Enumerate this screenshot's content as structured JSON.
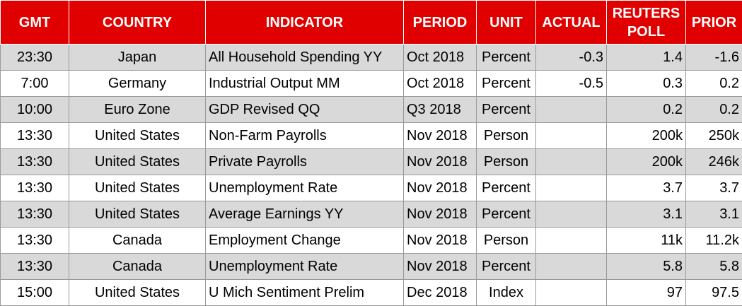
{
  "table": {
    "header": [
      "GMT",
      "COUNTRY",
      "INDICATOR",
      "PERIOD",
      "UNIT",
      "ACTUAL",
      "REUTERS POLL",
      "PRIOR"
    ],
    "rows": [
      [
        "23:30",
        "Japan",
        "All Household Spending YY",
        "Oct 2018",
        "Percent",
        "-0.3",
        "1.4",
        "-1.6"
      ],
      [
        "7:00",
        "Germany",
        "Industrial Output MM",
        "Oct 2018",
        "Percent",
        "-0.5",
        "0.3",
        "0.2"
      ],
      [
        "10:00",
        "Euro Zone",
        "GDP Revised QQ",
        "Q3 2018",
        "Percent",
        null,
        "0.2",
        "0.2"
      ],
      [
        "13:30",
        "United States",
        "Non-Farm Payrolls",
        "Nov 2018",
        "Person",
        null,
        "200k",
        "250k"
      ],
      [
        "13:30",
        "United States",
        "Private Payrolls",
        "Nov 2018",
        "Person",
        null,
        "200k",
        "246k"
      ],
      [
        "13:30",
        "United States",
        "Unemployment Rate",
        "Nov 2018",
        "Percent",
        null,
        "3.7",
        "3.7"
      ],
      [
        "13:30",
        "United States",
        "Average Earnings YY",
        "Nov 2018",
        "Percent",
        null,
        "3.1",
        "3.1"
      ],
      [
        "13:30",
        "Canada",
        "Employment Change",
        "Nov 2018",
        "Person",
        null,
        "11k",
        "11.2k"
      ],
      [
        "13:30",
        "Canada",
        "Unemployment Rate",
        "Nov 2018",
        "Percent",
        null,
        "5.8",
        "5.8"
      ],
      [
        "15:00",
        "United States",
        "U Mich Sentiment Prelim",
        "Dec 2018",
        "Index",
        null,
        "97",
        "97.5"
      ]
    ]
  }
}
